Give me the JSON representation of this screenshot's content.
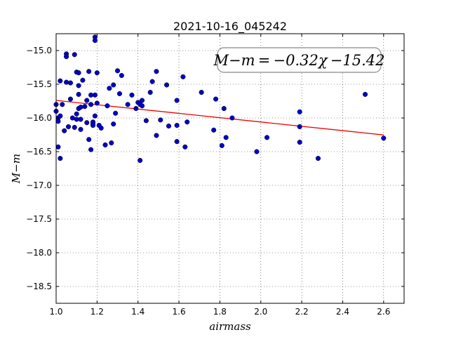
{
  "chart_data": {
    "type": "scatter",
    "title": "2021-10-16_045242",
    "xlabel": "airmass",
    "ylabel": "M−m",
    "xlim": [
      1.0,
      2.7
    ],
    "ylim": [
      -18.75,
      -14.75
    ],
    "y_inverted": true,
    "grid": true,
    "x_ticks": [
      1.0,
      1.2,
      1.4,
      1.6,
      1.8,
      2.0,
      2.2,
      2.4,
      2.6
    ],
    "x_tick_labels": [
      "1.0",
      "1.2",
      "1.4",
      "1.6",
      "1.8",
      "2.0",
      "2.2",
      "2.4",
      "2.6"
    ],
    "y_ticks": [
      -15.0,
      -15.5,
      -16.0,
      -16.5,
      -17.0,
      -17.5,
      -18.0,
      -18.5
    ],
    "y_tick_labels": [
      "−15.0",
      "−15.5",
      "−16.0",
      "−16.5",
      "−17.0",
      "−17.5",
      "−18.0",
      "−18.5"
    ],
    "annotation": "M−m = −0.32χ −15.42",
    "point_color": "#0000cc",
    "fit_color": "#ee0000",
    "fit": {
      "slope": -0.32,
      "intercept": -15.42,
      "x_range": [
        1.0,
        2.6
      ]
    },
    "points": [
      [
        1.0,
        -15.8
      ],
      [
        1.0,
        -15.9
      ],
      [
        1.01,
        -16.0
      ],
      [
        1.01,
        -16.05
      ],
      [
        1.01,
        -16.43
      ],
      [
        1.02,
        -16.6
      ],
      [
        1.02,
        -15.97
      ],
      [
        1.02,
        -15.45
      ],
      [
        1.03,
        -15.8
      ],
      [
        1.04,
        -16.19
      ],
      [
        1.05,
        -15.05
      ],
      [
        1.05,
        -15.09
      ],
      [
        1.05,
        -15.47
      ],
      [
        1.06,
        -16.13
      ],
      [
        1.07,
        -15.48
      ],
      [
        1.07,
        -15.72
      ],
      [
        1.08,
        -16.0
      ],
      [
        1.09,
        -15.06
      ],
      [
        1.09,
        -16.14
      ],
      [
        1.1,
        -15.32
      ],
      [
        1.1,
        -15.94
      ],
      [
        1.1,
        -16.02
      ],
      [
        1.11,
        -15.33
      ],
      [
        1.11,
        -15.86
      ],
      [
        1.11,
        -15.52
      ],
      [
        1.11,
        -15.65
      ],
      [
        1.12,
        -15.84
      ],
      [
        1.12,
        -16.17
      ],
      [
        1.12,
        -16.02
      ],
      [
        1.13,
        -15.44
      ],
      [
        1.14,
        -15.83
      ],
      [
        1.15,
        -16.07
      ],
      [
        1.15,
        -15.74
      ],
      [
        1.16,
        -15.31
      ],
      [
        1.16,
        -16.32
      ],
      [
        1.17,
        -16.47
      ],
      [
        1.17,
        -15.66
      ],
      [
        1.17,
        -15.8
      ],
      [
        1.18,
        -16.08
      ],
      [
        1.18,
        -16.06
      ],
      [
        1.18,
        -16.11
      ],
      [
        1.19,
        -15.97
      ],
      [
        1.19,
        -15.66
      ],
      [
        1.19,
        -14.8
      ],
      [
        1.19,
        -14.85
      ],
      [
        1.2,
        -15.78
      ],
      [
        1.2,
        -15.33
      ],
      [
        1.21,
        -16.11
      ],
      [
        1.22,
        -16.15
      ],
      [
        1.24,
        -16.4
      ],
      [
        1.25,
        -15.82
      ],
      [
        1.26,
        -15.56
      ],
      [
        1.27,
        -16.37
      ],
      [
        1.28,
        -15.51
      ],
      [
        1.28,
        -16.09
      ],
      [
        1.29,
        -15.93
      ],
      [
        1.3,
        -15.3
      ],
      [
        1.31,
        -15.64
      ],
      [
        1.32,
        -15.37
      ],
      [
        1.35,
        -15.8
      ],
      [
        1.37,
        -15.66
      ],
      [
        1.39,
        -15.86
      ],
      [
        1.4,
        -15.77
      ],
      [
        1.41,
        -16.63
      ],
      [
        1.41,
        -15.8
      ],
      [
        1.42,
        -15.74
      ],
      [
        1.42,
        -15.82
      ],
      [
        1.44,
        -16.04
      ],
      [
        1.46,
        -15.62
      ],
      [
        1.47,
        -15.46
      ],
      [
        1.49,
        -16.26
      ],
      [
        1.49,
        -15.31
      ],
      [
        1.51,
        -16.03
      ],
      [
        1.54,
        -15.51
      ],
      [
        1.55,
        -16.12
      ],
      [
        1.59,
        -15.74
      ],
      [
        1.59,
        -16.35
      ],
      [
        1.59,
        -16.11
      ],
      [
        1.62,
        -15.39
      ],
      [
        1.63,
        -16.43
      ],
      [
        1.64,
        -16.06
      ],
      [
        1.71,
        -15.62
      ],
      [
        1.77,
        -16.18
      ],
      [
        1.78,
        -15.72
      ],
      [
        1.81,
        -16.41
      ],
      [
        1.82,
        -15.86
      ],
      [
        1.83,
        -16.29
      ],
      [
        1.86,
        -16.0
      ],
      [
        1.98,
        -16.5
      ],
      [
        2.03,
        -16.29
      ],
      [
        2.19,
        -15.91
      ],
      [
        2.19,
        -16.13
      ],
      [
        2.19,
        -16.36
      ],
      [
        2.28,
        -16.6
      ],
      [
        2.51,
        -15.65
      ],
      [
        2.6,
        -16.3
      ]
    ]
  }
}
